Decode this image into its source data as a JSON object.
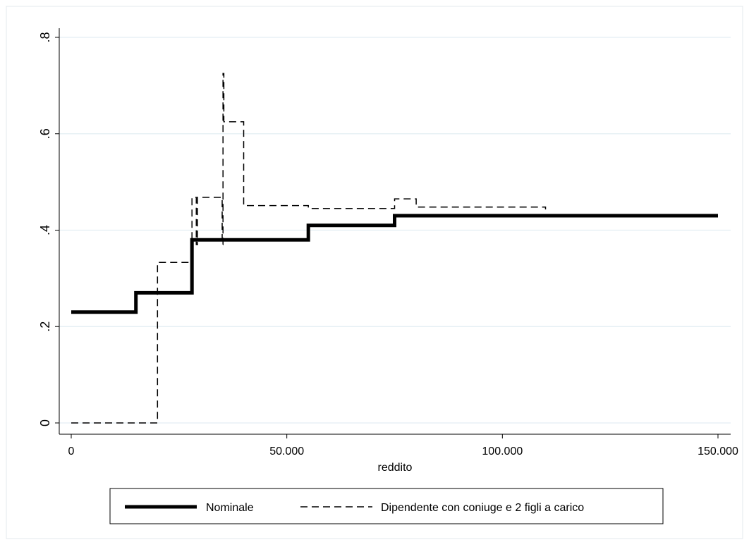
{
  "chart_data": {
    "type": "line",
    "title": "",
    "xlabel": "reddito",
    "ylabel": "",
    "xlim": [
      0,
      150000
    ],
    "ylim": [
      0,
      0.8
    ],
    "x_ticks": [
      {
        "value": 0,
        "label": "0"
      },
      {
        "value": 50000,
        "label": "50.000"
      },
      {
        "value": 100000,
        "label": "100.000"
      },
      {
        "value": 150000,
        "label": "150.000"
      }
    ],
    "y_ticks": [
      {
        "value": 0,
        "label": "0"
      },
      {
        "value": 0.2,
        "label": ".2"
      },
      {
        "value": 0.4,
        "label": ".4"
      },
      {
        "value": 0.6,
        "label": ".6"
      },
      {
        "value": 0.8,
        "label": ".8"
      }
    ],
    "grid": "horizontal",
    "legend_position": "bottom",
    "series": [
      {
        "name": "Nominale",
        "style": "solid-thick",
        "color": "#000000",
        "points": [
          [
            0,
            0.23
          ],
          [
            15000,
            0.23
          ],
          [
            15000,
            0.27
          ],
          [
            28000,
            0.27
          ],
          [
            28000,
            0.38
          ],
          [
            55000,
            0.38
          ],
          [
            55000,
            0.41
          ],
          [
            75000,
            0.41
          ],
          [
            75000,
            0.43
          ],
          [
            150000,
            0.43
          ]
        ]
      },
      {
        "name": "Dipendente con coniuge e 2 figli a carico",
        "style": "dashed",
        "color": "#000000",
        "points": [
          [
            0,
            0
          ],
          [
            20000,
            0
          ],
          [
            20000,
            0.333
          ],
          [
            28000,
            0.333
          ],
          [
            28000,
            0.468
          ],
          [
            29000,
            0.468
          ],
          [
            29000,
            0.37
          ],
          [
            29300,
            0.37
          ],
          [
            29300,
            0.468
          ],
          [
            35000,
            0.468
          ],
          [
            35000,
            0.37
          ],
          [
            35200,
            0.37
          ],
          [
            35200,
            0.725
          ],
          [
            35400,
            0.725
          ],
          [
            35400,
            0.625
          ],
          [
            40000,
            0.625
          ],
          [
            40000,
            0.451
          ],
          [
            55000,
            0.451
          ],
          [
            55000,
            0.445
          ],
          [
            75000,
            0.445
          ],
          [
            75000,
            0.465
          ],
          [
            80000,
            0.465
          ],
          [
            80000,
            0.448
          ],
          [
            110000,
            0.448
          ],
          [
            110000,
            0.443
          ]
        ]
      }
    ]
  }
}
